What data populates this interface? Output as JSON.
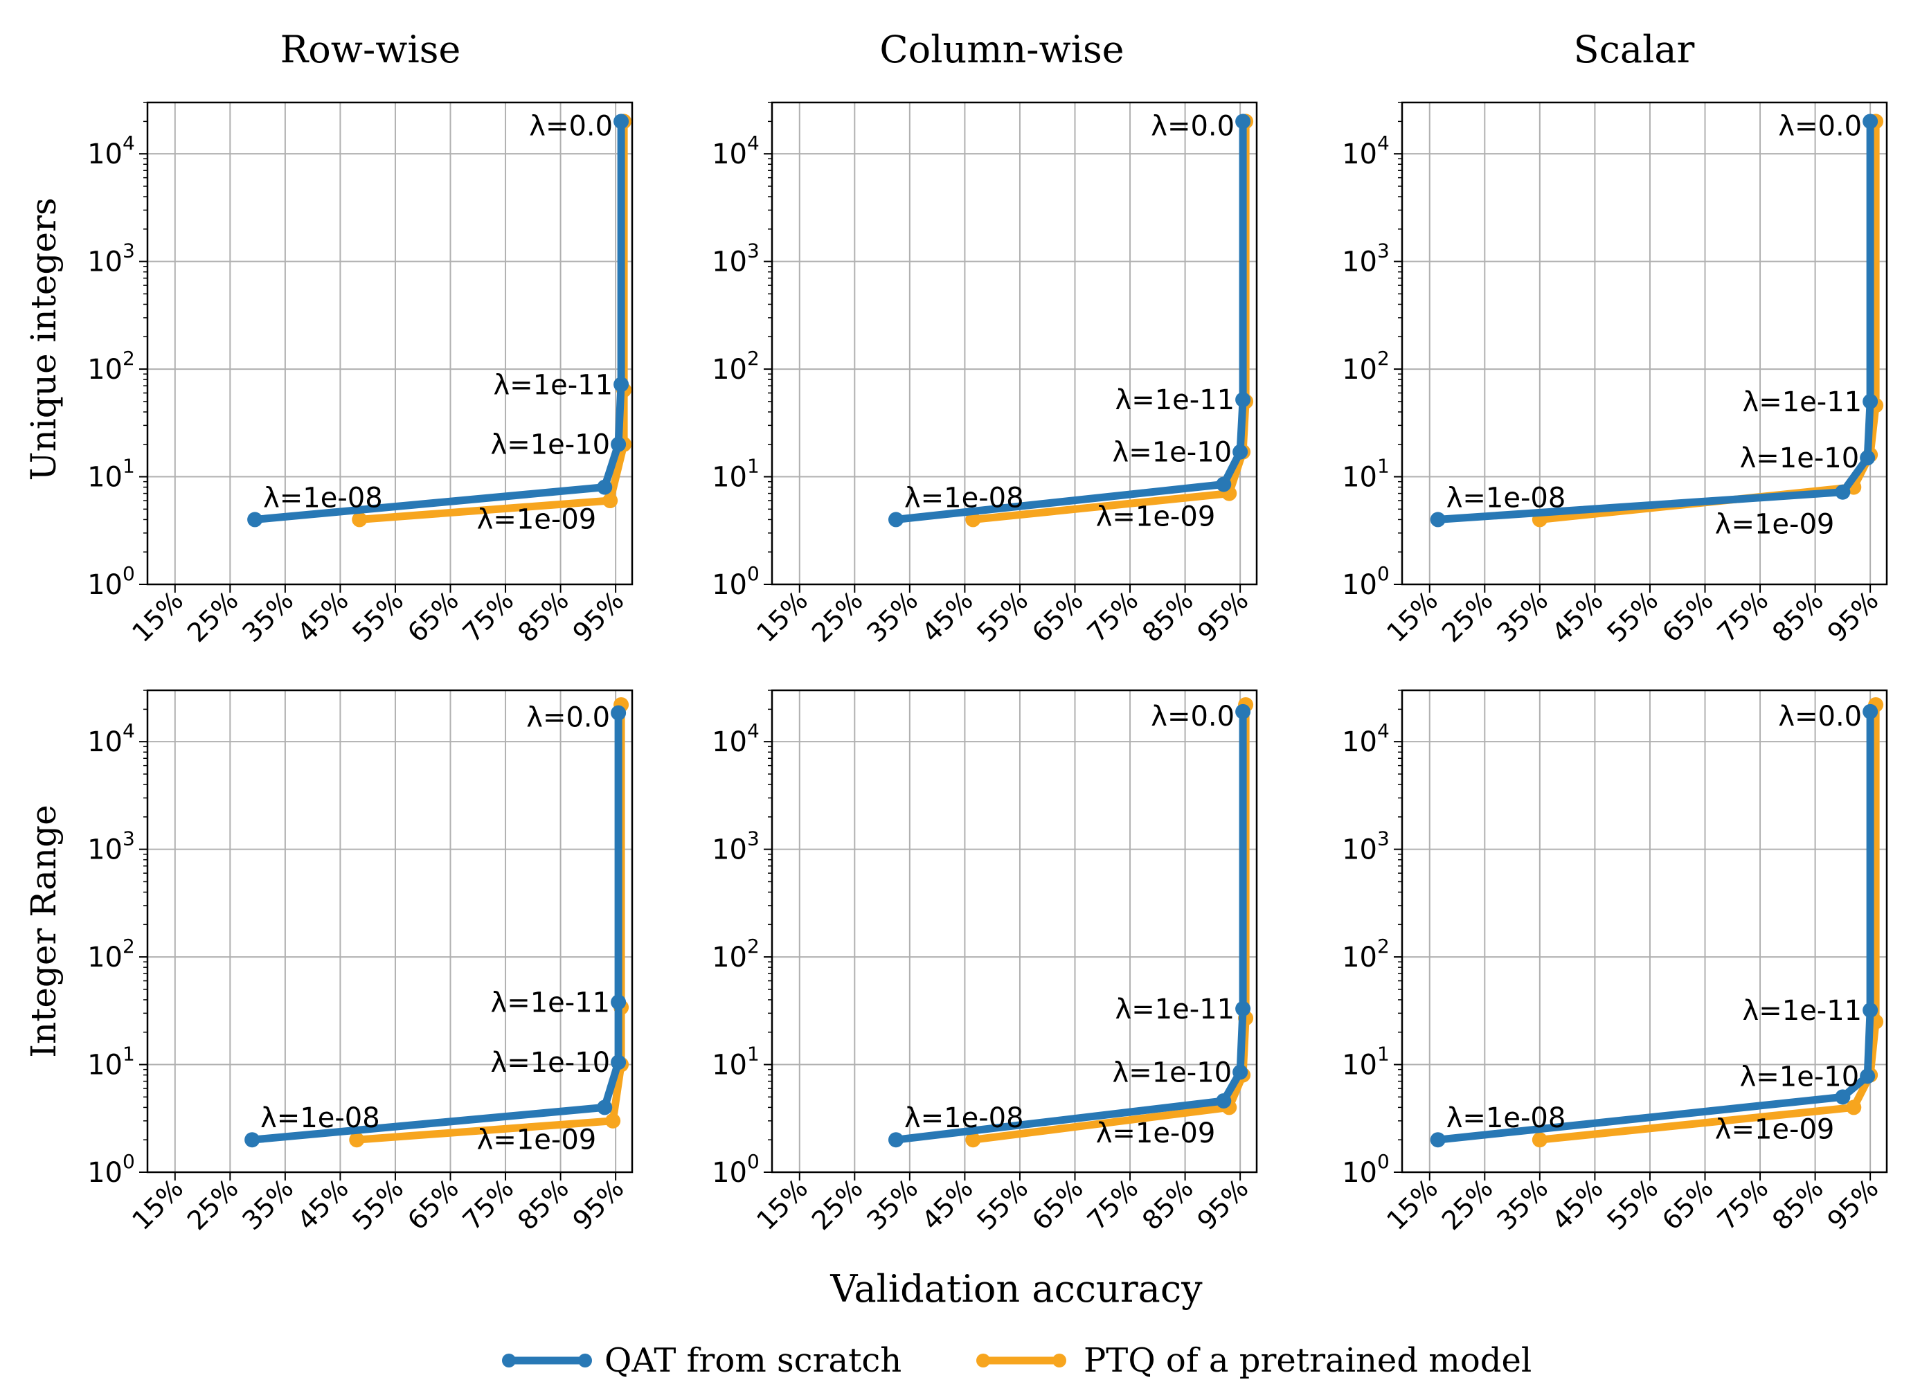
{
  "figure": {
    "column_titles": [
      "Row-wise",
      "Column-wise",
      "Scalar"
    ],
    "row_titles": [
      "Unique integers",
      "Integer Range"
    ],
    "xlabel": "Validation accuracy",
    "legend": [
      {
        "label": "QAT from scratch",
        "color": "#2878b5"
      },
      {
        "label": "PTQ of a pretrained model",
        "color": "#f7a51e"
      }
    ]
  },
  "chart_data": [
    {
      "type": "line",
      "title": "Row-wise",
      "ylabel": "Unique integers",
      "yscale": "log",
      "xlim": [
        10,
        98
      ],
      "ylim": [
        1,
        30000
      ],
      "x_ticks": [
        "15%",
        "25%",
        "35%",
        "45%",
        "55%",
        "65%",
        "75%",
        "85%",
        "95%"
      ],
      "y_ticks": [
        "10^0",
        "10^1",
        "10^2",
        "10^3",
        "10^4"
      ],
      "series": [
        {
          "name": "QAT from scratch",
          "color": "#2878b5",
          "points": [
            [
              29.5,
              4
            ],
            [
              93.0,
              8
            ],
            [
              95.5,
              20
            ],
            [
              96.0,
              72
            ],
            [
              96.0,
              20000
            ]
          ]
        },
        {
          "name": "PTQ of a pretrained model",
          "color": "#f7a51e",
          "points": [
            [
              48.5,
              4
            ],
            [
              94.0,
              6
            ],
            [
              96.5,
              20
            ],
            [
              96.5,
              64
            ],
            [
              96.5,
              20000
            ]
          ]
        }
      ],
      "annotations": [
        "λ=0.0",
        "λ=1e-11",
        "λ=1e-10",
        "λ=1e-09",
        "λ=1e-08"
      ]
    },
    {
      "type": "line",
      "title": "Column-wise",
      "ylabel": "",
      "yscale": "log",
      "xlim": [
        10,
        98
      ],
      "ylim": [
        1,
        30000
      ],
      "x_ticks": [
        "15%",
        "25%",
        "35%",
        "45%",
        "55%",
        "65%",
        "75%",
        "85%",
        "95%"
      ],
      "y_ticks": [
        "10^0",
        "10^1",
        "10^2",
        "10^3",
        "10^4"
      ],
      "series": [
        {
          "name": "QAT from scratch",
          "color": "#2878b5",
          "points": [
            [
              32.5,
              4
            ],
            [
              92.0,
              8.5
            ],
            [
              95.0,
              17
            ],
            [
              95.5,
              52
            ],
            [
              95.5,
              20000
            ]
          ]
        },
        {
          "name": "PTQ of a pretrained model",
          "color": "#f7a51e",
          "points": [
            [
              46.5,
              4
            ],
            [
              93.0,
              7
            ],
            [
              95.5,
              17
            ],
            [
              96.0,
              50
            ],
            [
              96.0,
              20000
            ]
          ]
        }
      ],
      "annotations": [
        "λ=0.0",
        "λ=1e-11",
        "λ=1e-10",
        "λ=1e-09",
        "λ=1e-08"
      ]
    },
    {
      "type": "line",
      "title": "Scalar",
      "ylabel": "",
      "yscale": "log",
      "xlim": [
        10,
        98
      ],
      "ylim": [
        1,
        30000
      ],
      "x_ticks": [
        "15%",
        "25%",
        "35%",
        "45%",
        "55%",
        "65%",
        "75%",
        "85%",
        "95%"
      ],
      "y_ticks": [
        "10^0",
        "10^1",
        "10^2",
        "10^3",
        "10^4"
      ],
      "series": [
        {
          "name": "QAT from scratch",
          "color": "#2878b5",
          "points": [
            [
              16.5,
              4
            ],
            [
              90.0,
              7.2
            ],
            [
              94.5,
              15
            ],
            [
              95.0,
              50
            ],
            [
              95.0,
              20000
            ]
          ]
        },
        {
          "name": "PTQ of a pretrained model",
          "color": "#f7a51e",
          "points": [
            [
              35.0,
              4
            ],
            [
              92.0,
              8
            ],
            [
              95.0,
              16
            ],
            [
              96.0,
              46
            ],
            [
              96.0,
              20000
            ]
          ]
        }
      ],
      "annotations": [
        "λ=0.0",
        "λ=1e-11",
        "λ=1e-10",
        "λ=1e-09",
        "λ=1e-08"
      ]
    },
    {
      "type": "line",
      "title": "",
      "ylabel": "Integer Range",
      "yscale": "log",
      "xlim": [
        10,
        98
      ],
      "ylim": [
        1,
        30000
      ],
      "x_ticks": [
        "15%",
        "25%",
        "35%",
        "45%",
        "55%",
        "65%",
        "75%",
        "85%",
        "95%"
      ],
      "y_ticks": [
        "10^0",
        "10^1",
        "10^2",
        "10^3",
        "10^4"
      ],
      "series": [
        {
          "name": "QAT from scratch",
          "color": "#2878b5",
          "points": [
            [
              29.0,
              2
            ],
            [
              93.0,
              4
            ],
            [
              95.5,
              10.5
            ],
            [
              95.5,
              38
            ],
            [
              95.5,
              18500
            ]
          ]
        },
        {
          "name": "PTQ of a pretrained model",
          "color": "#f7a51e",
          "points": [
            [
              48.0,
              2
            ],
            [
              94.5,
              3
            ],
            [
              96.0,
              10
            ],
            [
              96.0,
              34
            ],
            [
              96.0,
              22000
            ]
          ]
        }
      ],
      "annotations": [
        "λ=0.0",
        "λ=1e-11",
        "λ=1e-10",
        "λ=1e-09",
        "λ=1e-08"
      ]
    },
    {
      "type": "line",
      "title": "",
      "ylabel": "",
      "yscale": "log",
      "xlim": [
        10,
        98
      ],
      "ylim": [
        1,
        30000
      ],
      "x_ticks": [
        "15%",
        "25%",
        "35%",
        "45%",
        "55%",
        "65%",
        "75%",
        "85%",
        "95%"
      ],
      "y_ticks": [
        "10^0",
        "10^1",
        "10^2",
        "10^3",
        "10^4"
      ],
      "series": [
        {
          "name": "QAT from scratch",
          "color": "#2878b5",
          "points": [
            [
              32.5,
              2
            ],
            [
              92.0,
              4.6
            ],
            [
              95.0,
              8.5
            ],
            [
              95.5,
              33
            ],
            [
              95.5,
              19000
            ]
          ]
        },
        {
          "name": "PTQ of a pretrained model",
          "color": "#f7a51e",
          "points": [
            [
              46.5,
              2
            ],
            [
              93.0,
              4
            ],
            [
              95.5,
              8
            ],
            [
              96.0,
              27
            ],
            [
              96.0,
              22000
            ]
          ]
        }
      ],
      "annotations": [
        "λ=0.0",
        "λ=1e-11",
        "λ=1e-10",
        "λ=1e-09",
        "λ=1e-08"
      ]
    },
    {
      "type": "line",
      "title": "",
      "ylabel": "",
      "yscale": "log",
      "xlim": [
        10,
        98
      ],
      "ylim": [
        1,
        30000
      ],
      "x_ticks": [
        "15%",
        "25%",
        "35%",
        "45%",
        "55%",
        "65%",
        "75%",
        "85%",
        "95%"
      ],
      "y_ticks": [
        "10^0",
        "10^1",
        "10^2",
        "10^3",
        "10^4"
      ],
      "series": [
        {
          "name": "QAT from scratch",
          "color": "#2878b5",
          "points": [
            [
              16.5,
              2
            ],
            [
              90.0,
              5
            ],
            [
              94.5,
              7.8
            ],
            [
              95.0,
              32
            ],
            [
              95.0,
              19000
            ]
          ]
        },
        {
          "name": "PTQ of a pretrained model",
          "color": "#f7a51e",
          "points": [
            [
              35.0,
              2
            ],
            [
              92.0,
              4
            ],
            [
              95.0,
              8
            ],
            [
              96.0,
              25
            ],
            [
              96.0,
              22000
            ]
          ]
        }
      ],
      "annotations": [
        "λ=0.0",
        "λ=1e-11",
        "λ=1e-10",
        "λ=1e-09",
        "λ=1e-08"
      ]
    }
  ]
}
